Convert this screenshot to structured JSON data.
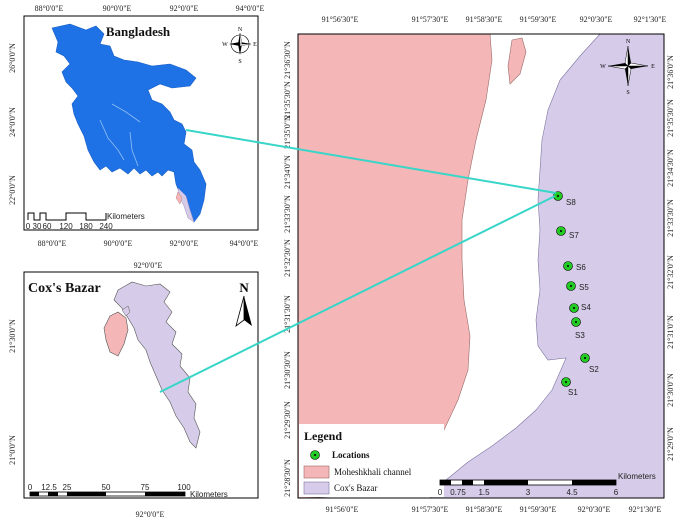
{
  "map_bangladesh": {
    "title": "Bangladesh",
    "x_ticks": [
      "88°0'0\"E",
      "90°0'0\"E",
      "92°0'0\"E",
      "94°0'0\"E"
    ],
    "y_ticks": [
      "26°0'0\"N",
      "24°0'0\"N",
      "22°0'0\"N"
    ],
    "scale_numbers": [
      "0",
      "30",
      "60",
      "120",
      "180",
      "240"
    ],
    "scale_unit": "Kilometers",
    "compass": {
      "n": "N",
      "s": "S",
      "e": "E",
      "w": "W"
    }
  },
  "map_coxs_bazar": {
    "title": "Cox's Bazar",
    "top_tick": "92°0'0\"E",
    "bottom_tick": "92°0'0\"E",
    "y_ticks": [
      "21°30'0\"N",
      "21°0'0\"N"
    ],
    "scale_numbers": [
      "0",
      "12.5",
      "25",
      "50",
      "75",
      "100"
    ],
    "scale_unit": "Kilometers",
    "north_label": "N"
  },
  "map_main": {
    "top_ticks": [
      "91°56'30\"E",
      "91°57'30\"E",
      "91°58'30\"E",
      "91°59'30\"E",
      "92°0'30\"E",
      "92°1'30\"E"
    ],
    "bottom_ticks": [
      "91°56'0\"E",
      "91°57'30\"E",
      "91°58'30\"E",
      "91°59'30\"E",
      "92°0'30\"E",
      "92°1'30\"E"
    ],
    "left_ticks": [
      "21°36'30\"N",
      "21°35'30\"N",
      "21°35'0\"N",
      "21°34'0\"N",
      "21°33'30\"N",
      "21°32'30\"N",
      "21°31'30\"N",
      "21°30'30\"N",
      "21°29'30\"N",
      "21°28'30\"N"
    ],
    "right_ticks": [
      "21°36'0\"N",
      "21°35'30\"N",
      "21°34'30\"N",
      "21°33'30\"N",
      "21°32'0\"N",
      "21°31'0\"N",
      "21°30'0\"N",
      "21°29'0\"N"
    ],
    "sampling_sites": [
      "S8",
      "S7",
      "S6",
      "S5",
      "S4",
      "S3",
      "S2",
      "S1"
    ],
    "compass": {
      "n": "N",
      "s": "S",
      "e": "E",
      "w": "W"
    },
    "scale_numbers": [
      "0",
      "0.75",
      "1.5",
      "3",
      "4.5",
      "6"
    ],
    "scale_unit": "Kilometers"
  },
  "legend": {
    "title": "Legend",
    "items": [
      {
        "label": "Locations",
        "color": "#22cc22"
      },
      {
        "label": "Moheshkhali channel",
        "color": "#f4b6b6"
      },
      {
        "label": "Cox's Bazar",
        "color": "#d6cce9"
      }
    ]
  },
  "colors": {
    "bangladesh": "#1f72e6",
    "coxs_bazar": "#d6cce9",
    "moheshkhali": "#f4b6b6",
    "connector": "#37d6c8",
    "site": "#22cc22"
  }
}
